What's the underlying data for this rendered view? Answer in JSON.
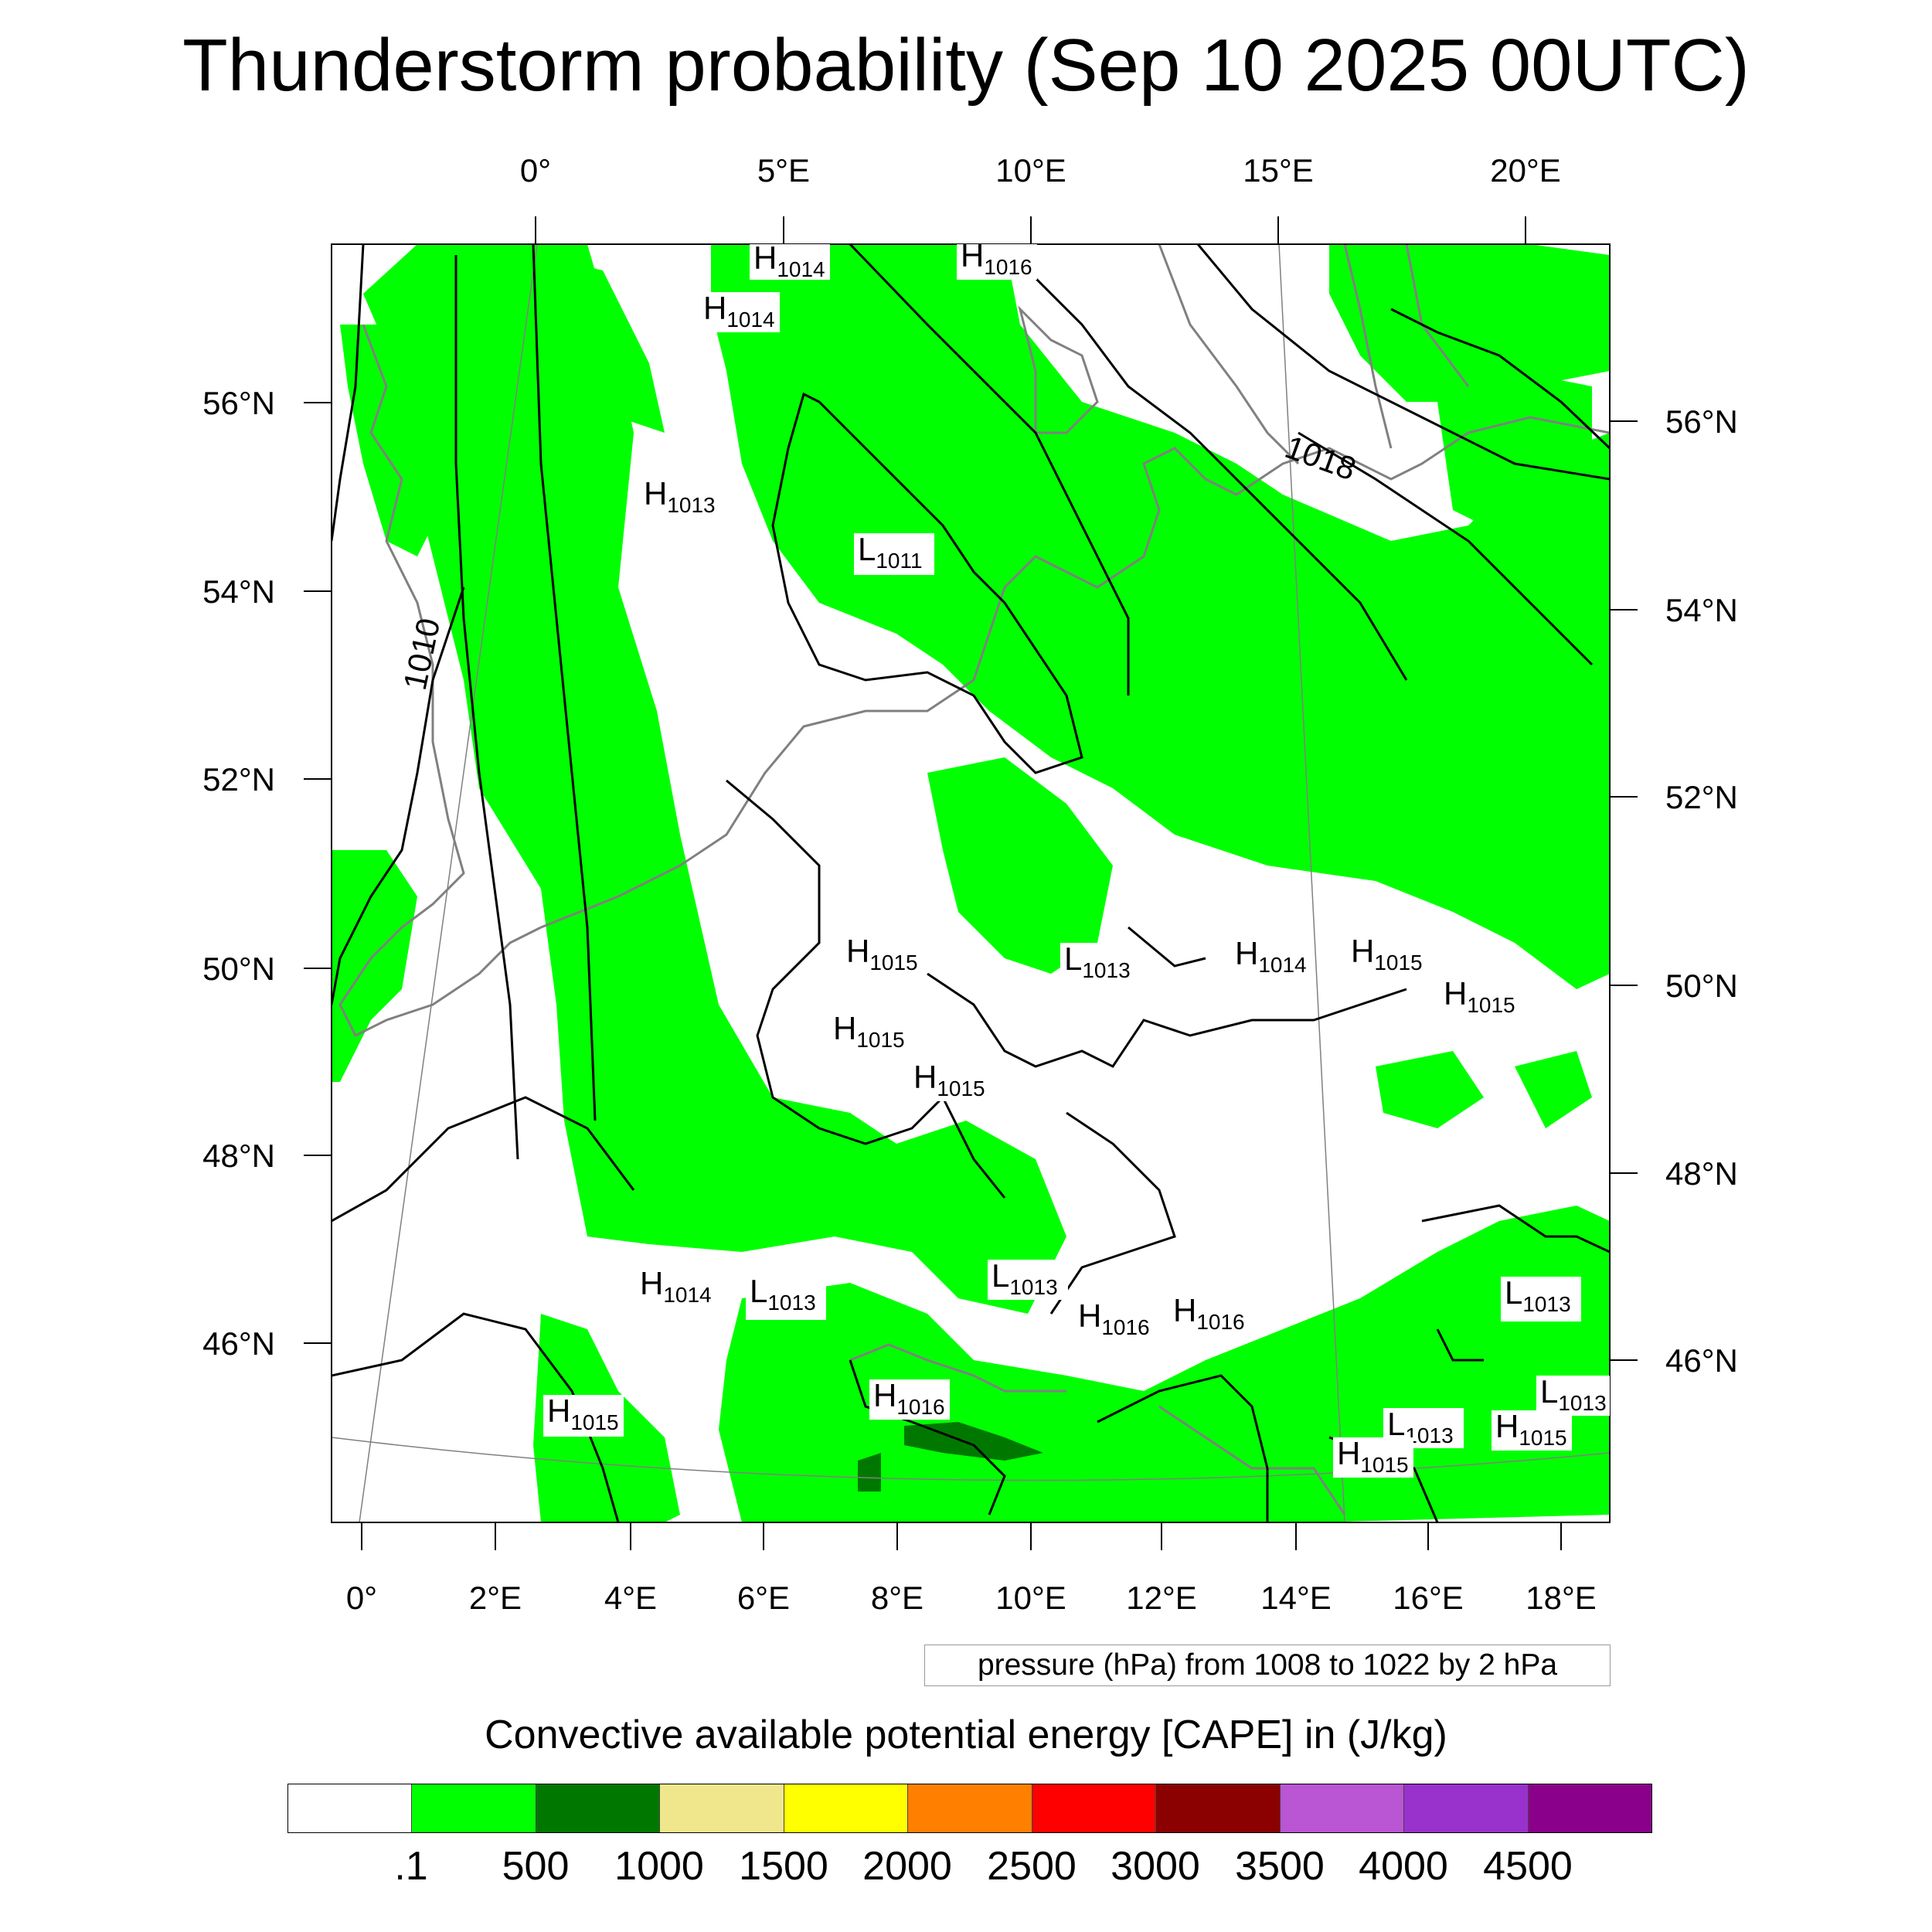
{
  "title": "Thunderstorm probability (Sep 10 2025 00UTC)",
  "top_lon_labels": [
    "0°",
    "5°E",
    "10°E",
    "15°E",
    "20°E"
  ],
  "bottom_lon_labels": [
    "0°",
    "2°E",
    "4°E",
    "6°E",
    "8°E",
    "10°E",
    "12°E",
    "14°E",
    "16°E",
    "18°E"
  ],
  "left_lat_labels": [
    "56°N",
    "54°N",
    "52°N",
    "50°N",
    "48°N",
    "46°N"
  ],
  "right_lat_labels": [
    "56°N",
    "54°N",
    "52°N",
    "50°N",
    "48°N",
    "46°N"
  ],
  "isobar_labels": [
    "1010",
    "1018"
  ],
  "pressure_centers": [
    {
      "letter": "H",
      "value": "1014"
    },
    {
      "letter": "H",
      "value": "1016"
    },
    {
      "letter": "H",
      "value": "1014"
    },
    {
      "letter": "H",
      "value": "1013"
    },
    {
      "letter": "L",
      "value": "1011"
    },
    {
      "letter": "H",
      "value": "1015"
    },
    {
      "letter": "L",
      "value": "1013"
    },
    {
      "letter": "H",
      "value": "1014"
    },
    {
      "letter": "H",
      "value": "1015"
    },
    {
      "letter": "H",
      "value": "1015"
    },
    {
      "letter": "H",
      "value": "1015"
    },
    {
      "letter": "H",
      "value": "1015"
    },
    {
      "letter": "H",
      "value": "1014"
    },
    {
      "letter": "L",
      "value": "1013"
    },
    {
      "letter": "L",
      "value": "1013"
    },
    {
      "letter": "H",
      "value": "1016"
    },
    {
      "letter": "H",
      "value": "1016"
    },
    {
      "letter": "L",
      "value": "1013"
    },
    {
      "letter": "H",
      "value": "1015"
    },
    {
      "letter": "H",
      "value": "1016"
    },
    {
      "letter": "L",
      "value": "1013"
    },
    {
      "letter": "H",
      "value": "1015"
    },
    {
      "letter": "H",
      "value": "1015"
    },
    {
      "letter": "L",
      "value": "1013"
    }
  ],
  "pressure_note": "pressure (hPa) from 1008 to 1022 by 2 hPa",
  "colorbar": {
    "title": "Convective available potential energy [CAPE] in (J/kg)",
    "colors": [
      "#ffffff",
      "#00ff00",
      "#007800",
      "#f0e68c",
      "#ffff00",
      "#ff8000",
      "#ff0000",
      "#8b0000",
      "#ba55d3",
      "#9932cc",
      "#8b008b"
    ],
    "labels": [
      ".1",
      "500",
      "1000",
      "1500",
      "2000",
      "2500",
      "3000",
      "3500",
      "4000",
      "4500"
    ]
  },
  "colors": {
    "cape_low": "#00ff00",
    "cape_mid": "#007800",
    "isobar": "#000000",
    "coastline": "#808080"
  }
}
